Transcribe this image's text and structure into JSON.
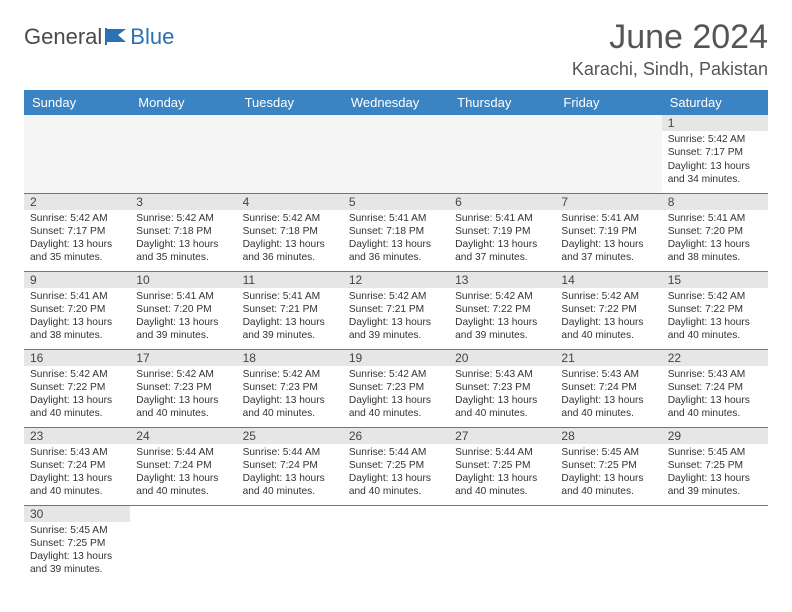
{
  "brand": {
    "part1": "General",
    "part2": "Blue"
  },
  "title": "June 2024",
  "location": "Karachi, Sindh, Pakistan",
  "colors": {
    "header_bg": "#3b84c4",
    "header_text": "#ffffff",
    "daynum_bg": "#e6e6e6",
    "row_border": "#3b84c4",
    "brand_blue": "#2a72b5",
    "title_color": "#555555"
  },
  "weekdays": [
    "Sunday",
    "Monday",
    "Tuesday",
    "Wednesday",
    "Thursday",
    "Friday",
    "Saturday"
  ],
  "grid": [
    [
      null,
      null,
      null,
      null,
      null,
      null,
      {
        "n": "1",
        "sr": "5:42 AM",
        "ss": "7:17 PM",
        "dl": "13 hours and 34 minutes."
      }
    ],
    [
      {
        "n": "2",
        "sr": "5:42 AM",
        "ss": "7:17 PM",
        "dl": "13 hours and 35 minutes."
      },
      {
        "n": "3",
        "sr": "5:42 AM",
        "ss": "7:18 PM",
        "dl": "13 hours and 35 minutes."
      },
      {
        "n": "4",
        "sr": "5:42 AM",
        "ss": "7:18 PM",
        "dl": "13 hours and 36 minutes."
      },
      {
        "n": "5",
        "sr": "5:41 AM",
        "ss": "7:18 PM",
        "dl": "13 hours and 36 minutes."
      },
      {
        "n": "6",
        "sr": "5:41 AM",
        "ss": "7:19 PM",
        "dl": "13 hours and 37 minutes."
      },
      {
        "n": "7",
        "sr": "5:41 AM",
        "ss": "7:19 PM",
        "dl": "13 hours and 37 minutes."
      },
      {
        "n": "8",
        "sr": "5:41 AM",
        "ss": "7:20 PM",
        "dl": "13 hours and 38 minutes."
      }
    ],
    [
      {
        "n": "9",
        "sr": "5:41 AM",
        "ss": "7:20 PM",
        "dl": "13 hours and 38 minutes."
      },
      {
        "n": "10",
        "sr": "5:41 AM",
        "ss": "7:20 PM",
        "dl": "13 hours and 39 minutes."
      },
      {
        "n": "11",
        "sr": "5:41 AM",
        "ss": "7:21 PM",
        "dl": "13 hours and 39 minutes."
      },
      {
        "n": "12",
        "sr": "5:42 AM",
        "ss": "7:21 PM",
        "dl": "13 hours and 39 minutes."
      },
      {
        "n": "13",
        "sr": "5:42 AM",
        "ss": "7:22 PM",
        "dl": "13 hours and 39 minutes."
      },
      {
        "n": "14",
        "sr": "5:42 AM",
        "ss": "7:22 PM",
        "dl": "13 hours and 40 minutes."
      },
      {
        "n": "15",
        "sr": "5:42 AM",
        "ss": "7:22 PM",
        "dl": "13 hours and 40 minutes."
      }
    ],
    [
      {
        "n": "16",
        "sr": "5:42 AM",
        "ss": "7:22 PM",
        "dl": "13 hours and 40 minutes."
      },
      {
        "n": "17",
        "sr": "5:42 AM",
        "ss": "7:23 PM",
        "dl": "13 hours and 40 minutes."
      },
      {
        "n": "18",
        "sr": "5:42 AM",
        "ss": "7:23 PM",
        "dl": "13 hours and 40 minutes."
      },
      {
        "n": "19",
        "sr": "5:42 AM",
        "ss": "7:23 PM",
        "dl": "13 hours and 40 minutes."
      },
      {
        "n": "20",
        "sr": "5:43 AM",
        "ss": "7:23 PM",
        "dl": "13 hours and 40 minutes."
      },
      {
        "n": "21",
        "sr": "5:43 AM",
        "ss": "7:24 PM",
        "dl": "13 hours and 40 minutes."
      },
      {
        "n": "22",
        "sr": "5:43 AM",
        "ss": "7:24 PM",
        "dl": "13 hours and 40 minutes."
      }
    ],
    [
      {
        "n": "23",
        "sr": "5:43 AM",
        "ss": "7:24 PM",
        "dl": "13 hours and 40 minutes."
      },
      {
        "n": "24",
        "sr": "5:44 AM",
        "ss": "7:24 PM",
        "dl": "13 hours and 40 minutes."
      },
      {
        "n": "25",
        "sr": "5:44 AM",
        "ss": "7:24 PM",
        "dl": "13 hours and 40 minutes."
      },
      {
        "n": "26",
        "sr": "5:44 AM",
        "ss": "7:25 PM",
        "dl": "13 hours and 40 minutes."
      },
      {
        "n": "27",
        "sr": "5:44 AM",
        "ss": "7:25 PM",
        "dl": "13 hours and 40 minutes."
      },
      {
        "n": "28",
        "sr": "5:45 AM",
        "ss": "7:25 PM",
        "dl": "13 hours and 40 minutes."
      },
      {
        "n": "29",
        "sr": "5:45 AM",
        "ss": "7:25 PM",
        "dl": "13 hours and 39 minutes."
      }
    ],
    [
      {
        "n": "30",
        "sr": "5:45 AM",
        "ss": "7:25 PM",
        "dl": "13 hours and 39 minutes."
      },
      null,
      null,
      null,
      null,
      null,
      null
    ]
  ],
  "labels": {
    "sunrise": "Sunrise:",
    "sunset": "Sunset:",
    "daylight": "Daylight:"
  }
}
